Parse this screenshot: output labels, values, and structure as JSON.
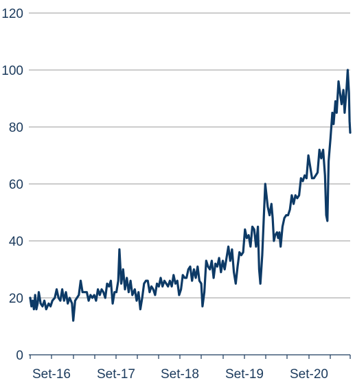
{
  "chart_data": {
    "type": "line",
    "title": "",
    "xlabel": "",
    "ylabel": "",
    "ylim": [
      0,
      120
    ],
    "yticks": [
      0,
      20,
      40,
      60,
      80,
      100,
      120
    ],
    "grid": true,
    "x_tick_labels": [
      "Set-16",
      "Set-17",
      "Set-18",
      "Set-19",
      "Set-20"
    ],
    "line_color": "#0d3a66",
    "x_range": [
      0,
      56
    ],
    "series": [
      {
        "name": "",
        "points": [
          [
            0.0,
            20
          ],
          [
            0.2,
            17
          ],
          [
            0.4,
            19
          ],
          [
            0.6,
            16
          ],
          [
            0.8,
            21
          ],
          [
            1.0,
            16
          ],
          [
            1.2,
            18
          ],
          [
            1.4,
            22
          ],
          [
            1.7,
            18
          ],
          [
            2.0,
            17
          ],
          [
            2.3,
            19
          ],
          [
            2.6,
            16
          ],
          [
            3.0,
            18
          ],
          [
            3.3,
            17
          ],
          [
            3.6,
            19
          ],
          [
            4.0,
            20
          ],
          [
            4.3,
            23
          ],
          [
            4.6,
            20
          ],
          [
            4.9,
            19
          ],
          [
            5.2,
            23
          ],
          [
            5.5,
            19
          ],
          [
            5.8,
            22
          ],
          [
            6.1,
            18
          ],
          [
            6.4,
            20
          ],
          [
            6.8,
            18
          ],
          [
            7.0,
            12
          ],
          [
            7.3,
            19
          ],
          [
            7.6,
            20
          ],
          [
            7.9,
            21
          ],
          [
            8.2,
            26
          ],
          [
            8.5,
            22
          ],
          [
            8.9,
            22
          ],
          [
            9.2,
            22
          ],
          [
            9.5,
            19
          ],
          [
            9.8,
            21
          ],
          [
            10.1,
            20
          ],
          [
            10.4,
            21
          ],
          [
            10.7,
            19
          ],
          [
            11.0,
            23
          ],
          [
            11.3,
            21
          ],
          [
            11.6,
            23
          ],
          [
            11.9,
            22
          ],
          [
            12.2,
            20
          ],
          [
            12.5,
            25
          ],
          [
            12.8,
            24
          ],
          [
            13.1,
            26
          ],
          [
            13.4,
            18
          ],
          [
            13.7,
            22
          ],
          [
            14.0,
            22
          ],
          [
            14.3,
            26
          ],
          [
            14.5,
            37
          ],
          [
            14.8,
            25
          ],
          [
            15.1,
            30
          ],
          [
            15.4,
            23
          ],
          [
            15.7,
            27
          ],
          [
            16.0,
            22
          ],
          [
            16.3,
            26
          ],
          [
            16.6,
            21
          ],
          [
            17.0,
            23
          ],
          [
            17.3,
            19
          ],
          [
            17.6,
            22
          ],
          [
            17.9,
            16
          ],
          [
            18.2,
            20
          ],
          [
            18.5,
            25
          ],
          [
            18.8,
            26
          ],
          [
            19.1,
            26
          ],
          [
            19.4,
            22
          ],
          [
            19.7,
            24
          ],
          [
            20.0,
            23
          ],
          [
            20.3,
            21
          ],
          [
            20.6,
            25
          ],
          [
            20.9,
            24
          ],
          [
            21.2,
            27
          ],
          [
            21.5,
            24
          ],
          [
            21.8,
            26
          ],
          [
            22.1,
            25
          ],
          [
            22.4,
            24
          ],
          [
            22.7,
            26
          ],
          [
            23.0,
            24
          ],
          [
            23.3,
            28
          ],
          [
            23.6,
            25
          ],
          [
            23.9,
            26
          ],
          [
            24.2,
            21
          ],
          [
            24.5,
            23
          ],
          [
            24.8,
            28
          ],
          [
            25.1,
            27
          ],
          [
            25.4,
            27
          ],
          [
            25.7,
            30
          ],
          [
            26.0,
            31
          ],
          [
            26.3,
            26
          ],
          [
            26.6,
            30
          ],
          [
            26.9,
            27
          ],
          [
            27.2,
            31
          ],
          [
            27.5,
            26
          ],
          [
            27.8,
            25
          ],
          [
            28.0,
            17
          ],
          [
            28.3,
            22
          ],
          [
            28.6,
            33
          ],
          [
            28.9,
            31
          ],
          [
            29.2,
            30
          ],
          [
            29.5,
            33
          ],
          [
            29.8,
            27
          ],
          [
            30.1,
            32
          ],
          [
            30.4,
            31
          ],
          [
            30.7,
            34
          ],
          [
            31.0,
            29
          ],
          [
            31.3,
            33
          ],
          [
            31.6,
            30
          ],
          [
            31.9,
            34
          ],
          [
            32.2,
            38
          ],
          [
            32.5,
            33
          ],
          [
            32.8,
            37
          ],
          [
            33.1,
            29
          ],
          [
            33.4,
            25
          ],
          [
            33.7,
            31
          ],
          [
            34.0,
            36
          ],
          [
            34.3,
            35
          ],
          [
            34.6,
            36
          ],
          [
            34.9,
            44
          ],
          [
            35.2,
            41
          ],
          [
            35.5,
            42
          ],
          [
            35.8,
            38
          ],
          [
            36.1,
            45
          ],
          [
            36.4,
            44
          ],
          [
            36.7,
            38
          ],
          [
            37.0,
            45
          ],
          [
            37.2,
            30
          ],
          [
            37.4,
            25
          ],
          [
            37.7,
            35
          ],
          [
            38.0,
            50
          ],
          [
            38.2,
            60
          ],
          [
            38.4,
            56
          ],
          [
            38.6,
            52
          ],
          [
            38.9,
            49
          ],
          [
            39.2,
            53
          ],
          [
            39.4,
            48
          ],
          [
            39.6,
            40
          ],
          [
            39.8,
            42
          ],
          [
            40.1,
            43
          ],
          [
            40.3,
            41
          ],
          [
            40.5,
            43
          ],
          [
            40.7,
            38
          ],
          [
            41.0,
            45
          ],
          [
            41.3,
            48
          ],
          [
            41.6,
            49
          ],
          [
            41.9,
            49
          ],
          [
            42.2,
            51
          ],
          [
            42.5,
            56
          ],
          [
            42.8,
            53
          ],
          [
            43.1,
            56
          ],
          [
            43.4,
            55
          ],
          [
            43.7,
            56
          ],
          [
            44.0,
            62
          ],
          [
            44.3,
            61
          ],
          [
            44.6,
            63
          ],
          [
            44.9,
            62
          ],
          [
            45.2,
            70
          ],
          [
            45.5,
            66
          ],
          [
            45.8,
            62
          ],
          [
            46.1,
            62
          ],
          [
            46.4,
            63
          ],
          [
            46.7,
            64
          ],
          [
            47.0,
            72
          ],
          [
            47.3,
            69
          ],
          [
            47.6,
            72
          ],
          [
            47.9,
            63
          ],
          [
            48.1,
            49
          ],
          [
            48.3,
            47
          ],
          [
            48.5,
            68
          ],
          [
            48.8,
            76
          ],
          [
            49.1,
            85
          ],
          [
            49.3,
            81
          ],
          [
            49.6,
            89
          ],
          [
            49.8,
            85
          ],
          [
            50.1,
            96
          ],
          [
            50.4,
            91
          ],
          [
            50.6,
            88
          ],
          [
            50.9,
            93
          ],
          [
            51.1,
            85
          ],
          [
            51.4,
            93
          ],
          [
            51.6,
            100
          ],
          [
            51.8,
            92
          ],
          [
            51.9,
            82
          ],
          [
            52.0,
            78
          ]
        ]
      }
    ]
  }
}
